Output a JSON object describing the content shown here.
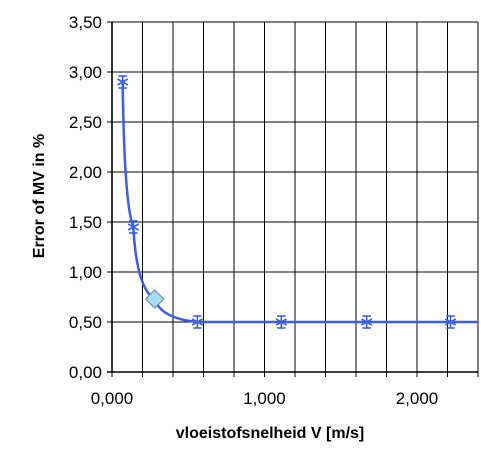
{
  "chart_data": {
    "type": "line",
    "title": "",
    "xlabel": "vloeistofsnelheid V  [m/s]",
    "ylabel": "Error of MV  in %",
    "xlim": [
      0,
      2.4
    ],
    "ylim": [
      0,
      3.5
    ],
    "x_ticks": [
      0,
      1,
      2
    ],
    "x_tick_labels": [
      "0,000",
      "1,000",
      "2,000"
    ],
    "x_grid_step": 0.2,
    "y_ticks": [
      0,
      0.5,
      1,
      1.5,
      2,
      2.5,
      3,
      3.5
    ],
    "y_tick_labels": [
      "0,00",
      "0,50",
      "1,00",
      "1,50",
      "2,00",
      "2,50",
      "3,00",
      "3,50"
    ],
    "grid": true,
    "legend": "none",
    "series": [
      {
        "x": [
          0.07,
          0.14,
          0.28,
          0.56,
          1.11,
          1.67,
          2.22,
          2.4
        ],
        "values": [
          2.9,
          1.45,
          0.73,
          0.5,
          0.5,
          0.5,
          0.5,
          0.5
        ],
        "markers": [
          "asterisk",
          "asterisk",
          "diamond",
          "asterisk",
          "asterisk",
          "asterisk",
          "asterisk",
          "none"
        ],
        "color": "#3a5fe0"
      }
    ],
    "highlight_point": {
      "x": 0.28,
      "y": 0.73,
      "color": "#a8dcf0"
    }
  }
}
